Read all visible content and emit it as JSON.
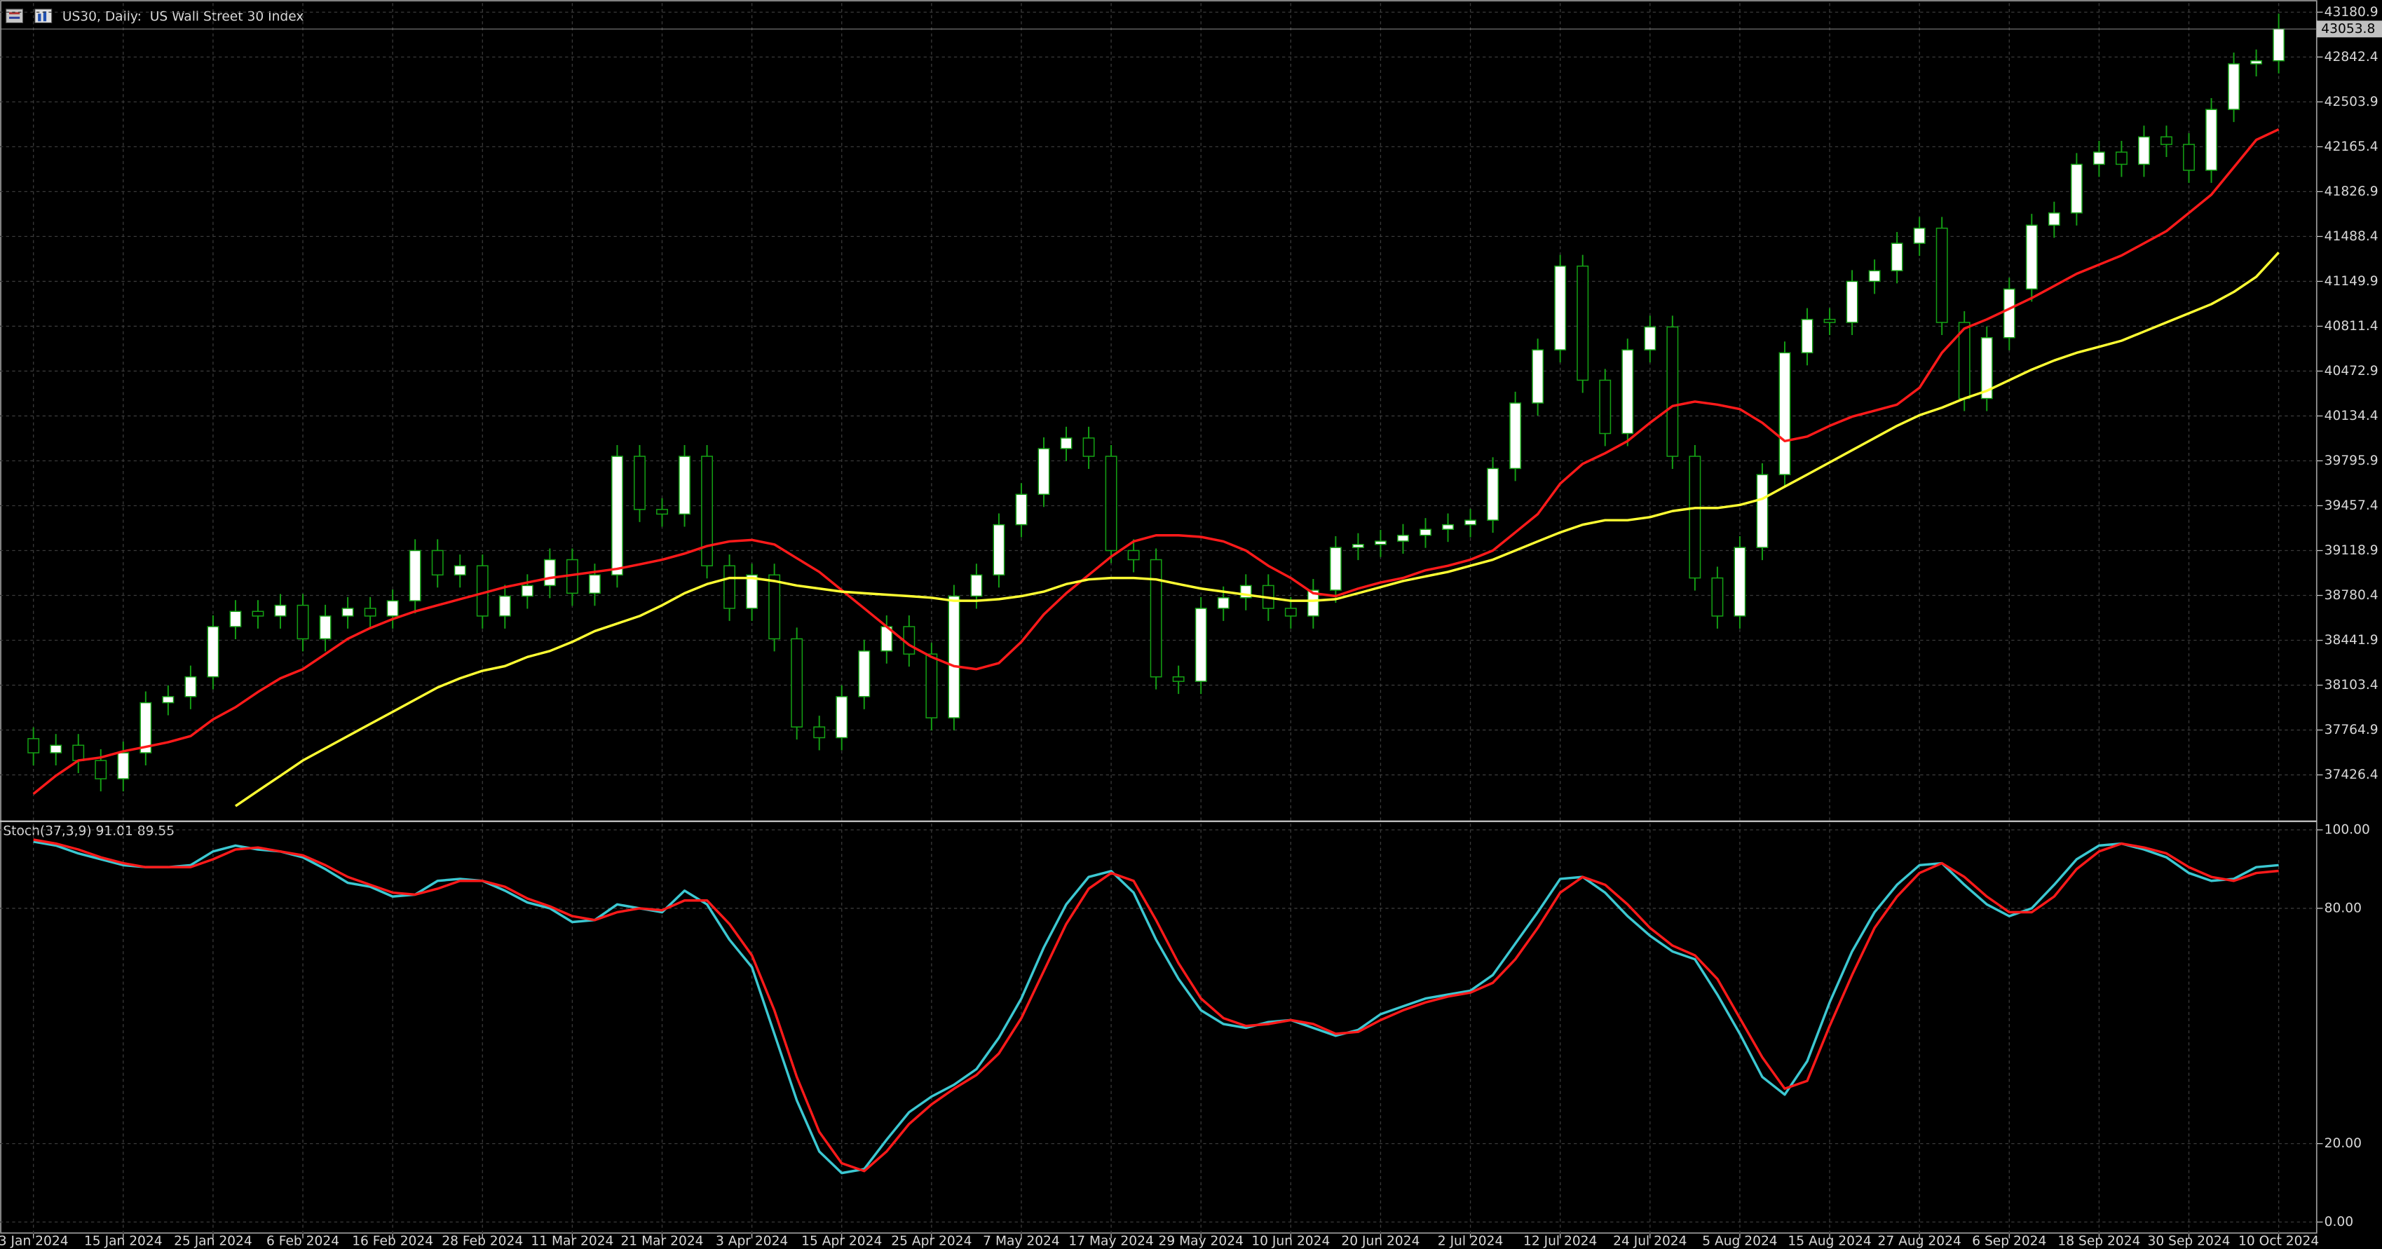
{
  "chart_data": [
    {
      "type": "candlestick",
      "title": "US30, Daily:  US Wall Street 30 Index",
      "categories": [
        "3 Jan 2024",
        null,
        null,
        null,
        "15 Jan 2024",
        null,
        null,
        null,
        "25 Jan 2024",
        null,
        null,
        null,
        "6 Feb 2024",
        null,
        null,
        null,
        "16 Feb 2024",
        null,
        null,
        null,
        "28 Feb 2024",
        null,
        null,
        null,
        "11 Mar 2024",
        null,
        null,
        null,
        "21 Mar 2024",
        null,
        null,
        null,
        "3 Apr 2024",
        null,
        null,
        null,
        "15 Apr 2024",
        null,
        null,
        null,
        "25 Apr 2024",
        null,
        null,
        null,
        "7 May 2024",
        null,
        null,
        null,
        "17 May 2024",
        null,
        null,
        null,
        "29 May 2024",
        null,
        null,
        null,
        "10 Jun 2024",
        null,
        null,
        null,
        "20 Jun 2024",
        null,
        null,
        null,
        "2 Jul 2024",
        null,
        null,
        null,
        "12 Jul 2024",
        null,
        null,
        null,
        "24 Jul 2024",
        null,
        null,
        null,
        "5 Aug 2024",
        null,
        null,
        null,
        "15 Aug 2024",
        null,
        null,
        null,
        "27 Aug 2024",
        null,
        null,
        null,
        "6 Sep 2024",
        null,
        null,
        null,
        "18 Sep 2024",
        null,
        null,
        null,
        "30 Sep 2024",
        null,
        null,
        null,
        "10 Oct 2024"
      ],
      "open": [
        37700,
        37593,
        37650,
        37535,
        37397,
        37593,
        37971,
        38017,
        38166,
        38545,
        38660,
        38625,
        38706,
        38453,
        38625,
        38683,
        38625,
        38740,
        39119,
        38935,
        39004,
        38625,
        38775,
        38855,
        39050,
        38797,
        38935,
        39830,
        39429,
        39394,
        39830,
        39004,
        38683,
        38935,
        38453,
        37788,
        37707,
        38017,
        38361,
        38545,
        38338,
        37857,
        38775,
        38935,
        39314,
        39543,
        39888,
        39968,
        39830,
        39119,
        39050,
        38166,
        38132,
        38683,
        38763,
        38855,
        38683,
        38625,
        38820,
        39142,
        39165,
        39190,
        39234,
        39279,
        39314,
        39348,
        39738,
        40232,
        40633,
        41265,
        40404,
        40002,
        40633,
        40806,
        39830,
        38912,
        38625,
        39142,
        39692,
        40611,
        40863,
        40840,
        41150,
        41230,
        41437,
        41551,
        40840,
        40266,
        40725,
        41092,
        41574,
        41666,
        42033,
        42125,
        42033,
        42240,
        42183,
        41988,
        42447,
        42791,
        42814
      ],
      "high": [
        37785,
        37735,
        37735,
        37620,
        37678,
        38056,
        38102,
        38251,
        38630,
        38745,
        38745,
        38791,
        38791,
        38710,
        38768,
        38768,
        38825,
        39204,
        39204,
        39089,
        39089,
        38860,
        38940,
        39135,
        39135,
        39020,
        39915,
        39915,
        39514,
        39915,
        39915,
        39089,
        39020,
        39020,
        38538,
        37873,
        38102,
        38446,
        38630,
        38630,
        38423,
        38860,
        39020,
        39399,
        39628,
        39973,
        40053,
        40053,
        39915,
        39204,
        39135,
        38251,
        38768,
        38848,
        38940,
        38940,
        38768,
        38905,
        39227,
        39250,
        39275,
        39319,
        39364,
        39399,
        39433,
        39823,
        40317,
        40718,
        41350,
        41350,
        40489,
        40718,
        40891,
        40891,
        39915,
        38997,
        39227,
        39777,
        40696,
        40948,
        40948,
        41235,
        41315,
        41522,
        41636,
        41636,
        40925,
        40810,
        41177,
        41659,
        41751,
        42118,
        42210,
        42210,
        42325,
        42325,
        42268,
        42532,
        42876,
        42899,
        43170
      ],
      "low": [
        37498,
        37498,
        37440,
        37302,
        37302,
        37498,
        37876,
        37922,
        38071,
        38450,
        38530,
        38530,
        38358,
        38358,
        38530,
        38530,
        38530,
        38645,
        38840,
        38840,
        38530,
        38530,
        38680,
        38760,
        38702,
        38702,
        38840,
        39334,
        39299,
        39299,
        38909,
        38588,
        38588,
        38358,
        37693,
        37612,
        37612,
        37922,
        38266,
        38243,
        37762,
        37762,
        38680,
        38840,
        39219,
        39448,
        39793,
        39735,
        39024,
        38955,
        38071,
        38037,
        38037,
        38588,
        38668,
        38588,
        38530,
        38530,
        38725,
        39047,
        39070,
        39095,
        39139,
        39184,
        39219,
        39253,
        39643,
        40137,
        40538,
        40309,
        39907,
        39907,
        40538,
        39735,
        38817,
        38530,
        38530,
        39047,
        39597,
        40516,
        40745,
        40745,
        41055,
        41135,
        41342,
        40745,
        40171,
        40171,
        40630,
        40997,
        41479,
        41571,
        41938,
        41938,
        41938,
        42088,
        41893,
        41893,
        42352,
        42696,
        42719
      ],
      "close": [
        37593,
        37650,
        37535,
        37397,
        37593,
        37971,
        38017,
        38166,
        38545,
        38660,
        38625,
        38706,
        38453,
        38625,
        38683,
        38625,
        38740,
        39119,
        38935,
        39004,
        38625,
        38775,
        38855,
        39050,
        38797,
        38935,
        39830,
        39429,
        39394,
        39830,
        39004,
        38683,
        38935,
        38453,
        37788,
        37707,
        38017,
        38361,
        38545,
        38338,
        37857,
        38775,
        38935,
        39314,
        39543,
        39888,
        39968,
        39830,
        39119,
        39050,
        38166,
        38132,
        38683,
        38763,
        38855,
        38683,
        38625,
        38820,
        39142,
        39165,
        39190,
        39234,
        39279,
        39314,
        39348,
        39738,
        40232,
        40633,
        41265,
        40404,
        40002,
        40633,
        40806,
        39830,
        38912,
        38625,
        39142,
        39692,
        40611,
        40863,
        40840,
        41150,
        41230,
        41437,
        41551,
        40840,
        40266,
        40725,
        41092,
        41574,
        41666,
        42033,
        42125,
        42033,
        42240,
        42183,
        41988,
        42447,
        42791,
        42814,
        43054
      ],
      "series": [
        {
          "color": "#ff1a1a",
          "values": [
            37283,
            37420,
            37535,
            37558,
            37604,
            37638,
            37673,
            37719,
            37845,
            37937,
            38052,
            38155,
            38224,
            38338,
            38453,
            38534,
            38602,
            38660,
            38706,
            38752,
            38797,
            38843,
            38878,
            38912,
            38935,
            38958,
            38981,
            39015,
            39050,
            39096,
            39153,
            39188,
            39199,
            39165,
            39061,
            38958,
            38820,
            38683,
            38545,
            38407,
            38316,
            38247,
            38224,
            38270,
            38430,
            38637,
            38797,
            38935,
            39073,
            39188,
            39234,
            39234,
            39222,
            39188,
            39119,
            39004,
            38912,
            38797,
            38775,
            38832,
            38878,
            38912,
            38970,
            39004,
            39050,
            39119,
            39256,
            39394,
            39624,
            39773,
            39853,
            39945,
            40083,
            40209,
            40243,
            40220,
            40186,
            40083,
            39945,
            39979,
            40060,
            40129,
            40174,
            40220,
            40347,
            40611,
            40794,
            40863,
            40943,
            41024,
            41115,
            41207,
            41276,
            41345,
            41437,
            41529,
            41666,
            41804,
            42010,
            42217,
            42297
          ]
        },
        {
          "color": "#ffff33",
          "values": [
            null,
            null,
            null,
            null,
            null,
            null,
            null,
            null,
            null,
            37191,
            37306,
            37420,
            37535,
            37627,
            37719,
            37811,
            37902,
            37994,
            38086,
            38155,
            38212,
            38247,
            38316,
            38361,
            38430,
            38511,
            38568,
            38625,
            38706,
            38797,
            38866,
            38912,
            38912,
            38889,
            38855,
            38832,
            38809,
            38797,
            38786,
            38775,
            38763,
            38740,
            38740,
            38752,
            38775,
            38809,
            38866,
            38901,
            38912,
            38912,
            38901,
            38866,
            38832,
            38809,
            38786,
            38763,
            38740,
            38740,
            38752,
            38797,
            38843,
            38889,
            38924,
            38958,
            39004,
            39050,
            39119,
            39188,
            39256,
            39314,
            39348,
            39348,
            39371,
            39417,
            39440,
            39440,
            39463,
            39509,
            39601,
            39692,
            39784,
            39876,
            39968,
            40060,
            40140,
            40197,
            40266,
            40324,
            40404,
            40484,
            40553,
            40611,
            40656,
            40702,
            40771,
            40840,
            40909,
            40978,
            41070,
            41184,
            41368
          ]
        }
      ],
      "ylim": [
        37082.2,
        43249.7
      ],
      "yticks": [
        37426.4,
        37764.9,
        38103.4,
        38441.9,
        38780.4,
        39118.9,
        39457.4,
        39795.9,
        40134.4,
        40472.9,
        40811.4,
        41149.9,
        41488.4,
        41826.9,
        42165.4,
        42503.9,
        42842.4,
        43180.9
      ],
      "grid": true,
      "bull_color": "#ffffff",
      "bear_color": "#000000",
      "wick_color": "#14a014",
      "last_price": 43053.8
    },
    {
      "type": "line",
      "title": "Stoch(37,3,9) 91.01 89.55",
      "series": [
        {
          "color": "#3cc8d2",
          "values": [
            97,
            96,
            94,
            92.5,
            91,
            90.5,
            90.5,
            91,
            94.5,
            96,
            95,
            94.5,
            93,
            90,
            86.5,
            85.5,
            83,
            83.5,
            87,
            87.5,
            87,
            84.5,
            81.5,
            80,
            76.5,
            77,
            81,
            80,
            79,
            84.5,
            81,
            72,
            65,
            48,
            31,
            18,
            12.5,
            13.5,
            21,
            28,
            32,
            35,
            39,
            47,
            57,
            70,
            81,
            88,
            89.5,
            84,
            72,
            62,
            54,
            50.5,
            49.5,
            51,
            51.5,
            49.5,
            47.5,
            49,
            53,
            55,
            57,
            58,
            59,
            63,
            71,
            79,
            87.5,
            88,
            84,
            78,
            73,
            69,
            67,
            58,
            48,
            37,
            32.5,
            41,
            56,
            69,
            79,
            86,
            91,
            91.5,
            86,
            81,
            78,
            80,
            86,
            92.5,
            96,
            96.5,
            95,
            93,
            89,
            87,
            87.5,
            90.5,
            91.01
          ]
        },
        {
          "color": "#ff1a1a",
          "values": [
            97.5,
            96.5,
            95,
            93,
            91.5,
            90.5,
            90.5,
            90.5,
            92.5,
            95,
            95.5,
            94.5,
            93.5,
            91,
            88,
            86,
            84,
            83.5,
            85,
            87,
            87,
            85.5,
            82.5,
            80.5,
            78,
            77,
            79,
            80,
            79.5,
            82,
            82,
            76,
            68,
            54,
            37,
            23,
            15,
            13,
            18,
            25,
            30,
            34,
            37.5,
            43,
            52,
            64,
            76,
            85,
            89,
            87,
            77,
            66,
            57,
            52,
            50,
            50.5,
            51.5,
            50.5,
            48,
            48.5,
            51.5,
            54,
            56,
            57.5,
            58.5,
            61,
            67,
            75,
            84,
            88,
            86,
            81,
            75,
            70.5,
            68,
            62,
            52,
            42,
            34,
            36,
            50,
            63,
            75,
            83,
            89,
            91.5,
            88,
            83,
            79,
            79,
            83,
            90,
            94.5,
            96.5,
            95.5,
            94,
            90.5,
            88,
            87,
            89,
            89.55
          ]
        }
      ],
      "ylim": [
        -3,
        102
      ],
      "yticks": [
        {
          "value": 0,
          "label": "0.00"
        },
        {
          "value": 20,
          "label": "20.00"
        },
        {
          "value": 80,
          "label": "80.00"
        },
        {
          "value": 100,
          "label": "100.00"
        }
      ],
      "grid": true
    }
  ]
}
